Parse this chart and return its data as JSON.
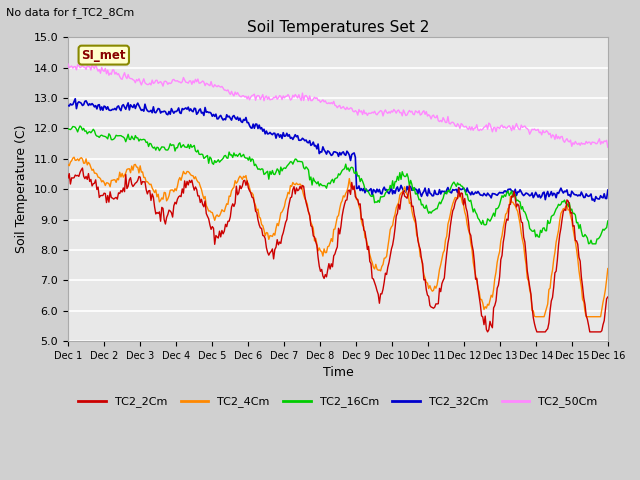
{
  "title": "Soil Temperatures Set 2",
  "subtitle": "No data for f_TC2_8Cm",
  "xlabel": "Time",
  "ylabel": "Soil Temperature (C)",
  "ylim": [
    5.0,
    15.0
  ],
  "yticks": [
    5.0,
    6.0,
    7.0,
    8.0,
    9.0,
    10.0,
    11.0,
    12.0,
    13.0,
    14.0,
    15.0
  ],
  "xtick_labels": [
    "Dec 1",
    "Dec 2",
    "Dec 3",
    "Dec 4",
    "Dec 5",
    "Dec 6",
    "Dec 7",
    "Dec 8",
    "Dec 9",
    "Dec 10",
    "Dec 11",
    "Dec 12",
    "Dec 13",
    "Dec 14",
    "Dec 15",
    "Dec 16"
  ],
  "colors": {
    "TC2_2Cm": "#cc0000",
    "TC2_4Cm": "#ff8800",
    "TC2_16Cm": "#00cc00",
    "TC2_32Cm": "#0000cc",
    "TC2_50Cm": "#ff88ff"
  },
  "legend_label": "SI_met",
  "plot_bg_color": "#e8e8e8",
  "fig_bg_color": "#d0d0d0"
}
